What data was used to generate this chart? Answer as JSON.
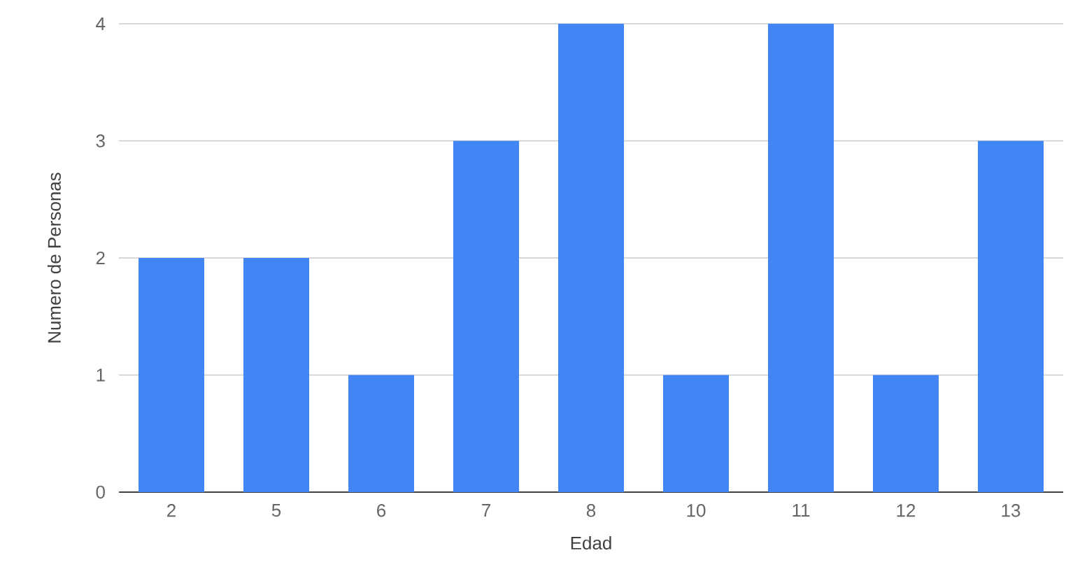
{
  "chart_data": {
    "type": "bar",
    "xlabel": "Edad",
    "ylabel": "Numero de Personas",
    "categories": [
      "2",
      "5",
      "6",
      "7",
      "8",
      "10",
      "11",
      "12",
      "13"
    ],
    "values": [
      2,
      2,
      1,
      3,
      4,
      1,
      4,
      1,
      3
    ],
    "color": "#4285f4",
    "ylim": [
      0,
      4
    ],
    "yticks": [
      0,
      1,
      2,
      3,
      4
    ],
    "grid": "y"
  }
}
